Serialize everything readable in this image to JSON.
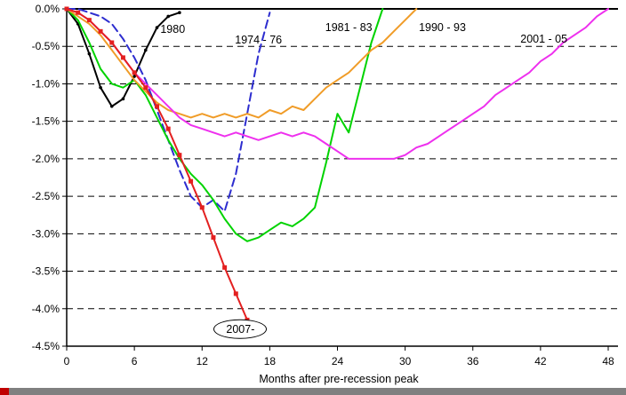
{
  "window": {
    "bottom_strip_color": "#808080",
    "bottom_strip_accent_color": "#c00000",
    "background_color": "#ffffff"
  },
  "chart_data": {
    "type": "line",
    "title": "",
    "xlabel": "Months after pre-recession peak",
    "ylabel": "",
    "xlim": [
      0,
      48
    ],
    "ylim": [
      -4.5,
      0
    ],
    "x_ticks": [
      0,
      6,
      12,
      18,
      24,
      30,
      36,
      42,
      48
    ],
    "y_tick_values": [
      0,
      -0.5,
      -1.0,
      -1.5,
      -2.0,
      -2.5,
      -3.0,
      -3.5,
      -4.0,
      -4.5
    ],
    "y_tick_labels": [
      "0.0%",
      "-0.5%",
      "-1.0%",
      "-1.5%",
      "-2.0%",
      "-2.5%",
      "-3.0%",
      "-3.5%",
      "-4.0%",
      "-4.5%"
    ],
    "grid": "horizontal-dashed",
    "legend": "inline-labels-on-plot",
    "series": [
      {
        "name": "1980",
        "color": "#000000",
        "line_style": "solid",
        "marker": "dot",
        "x_start": 0,
        "x_step": 1,
        "values": [
          0,
          -0.2,
          -0.6,
          -1.05,
          -1.3,
          -1.2,
          -0.9,
          -0.55,
          -0.25,
          -0.1,
          -0.05
        ]
      },
      {
        "name": "1974 - 76",
        "color": "#2d2dcf",
        "line_style": "dashed",
        "marker": "none",
        "x_start": 0,
        "x_step": 1,
        "values": [
          0,
          0,
          -0.05,
          -0.1,
          -0.2,
          -0.4,
          -0.65,
          -0.95,
          -1.35,
          -1.75,
          -2.15,
          -2.5,
          -2.65,
          -2.55,
          -2.7,
          -2.2,
          -1.4,
          -0.6,
          -0.05
        ]
      },
      {
        "name": "1981 - 83",
        "color": "#00d300",
        "line_style": "solid",
        "marker": "none",
        "x_start": 0,
        "x_step": 1,
        "values": [
          0,
          -0.15,
          -0.45,
          -0.8,
          -1.0,
          -1.05,
          -0.95,
          -1.15,
          -1.45,
          -1.75,
          -2.0,
          -2.2,
          -2.35,
          -2.55,
          -2.8,
          -3.0,
          -3.1,
          -3.05,
          -2.95,
          -2.85,
          -2.9,
          -2.8,
          -2.65,
          -2.05,
          -1.4,
          -1.65,
          -1.05,
          -0.45,
          0
        ]
      },
      {
        "name": "1990 - 93",
        "color": "#f09c28",
        "line_style": "solid",
        "marker": "none",
        "x_start": 0,
        "x_step": 1,
        "values": [
          0,
          -0.1,
          -0.2,
          -0.35,
          -0.55,
          -0.75,
          -0.95,
          -1.1,
          -1.25,
          -1.35,
          -1.4,
          -1.45,
          -1.4,
          -1.45,
          -1.4,
          -1.45,
          -1.4,
          -1.45,
          -1.35,
          -1.4,
          -1.3,
          -1.35,
          -1.2,
          -1.05,
          -0.95,
          -0.85,
          -0.7,
          -0.55,
          -0.45,
          -0.3,
          -0.15,
          0
        ]
      },
      {
        "name": "2001 - 05",
        "color": "#ee30ee",
        "line_style": "solid",
        "marker": "none",
        "x_start": 0,
        "x_step": 1,
        "values": [
          0,
          -0.05,
          -0.15,
          -0.3,
          -0.45,
          -0.65,
          -0.85,
          -1.0,
          -1.15,
          -1.3,
          -1.45,
          -1.55,
          -1.6,
          -1.65,
          -1.7,
          -1.65,
          -1.7,
          -1.75,
          -1.7,
          -1.65,
          -1.7,
          -1.65,
          -1.7,
          -1.8,
          -1.9,
          -2.0,
          -2.0,
          -2.0,
          -2.0,
          -2.0,
          -1.95,
          -1.85,
          -1.8,
          -1.7,
          -1.6,
          -1.5,
          -1.4,
          -1.3,
          -1.15,
          -1.05,
          -0.95,
          -0.85,
          -0.7,
          -0.6,
          -0.45,
          -0.35,
          -0.25,
          -0.1,
          0
        ]
      },
      {
        "name": "2007-",
        "color": "#e32020",
        "line_style": "solid",
        "marker": "square",
        "x_start": 0,
        "x_step": 1,
        "values": [
          0,
          -0.05,
          -0.15,
          -0.3,
          -0.45,
          -0.65,
          -0.85,
          -1.05,
          -1.3,
          -1.6,
          -1.95,
          -2.3,
          -2.65,
          -3.05,
          -3.45,
          -3.8,
          -4.15
        ]
      }
    ],
    "annotations": [
      {
        "text": "1980",
        "x": 9.4,
        "y": -0.27,
        "shape": "none"
      },
      {
        "text": "1974 - 76",
        "x": 17.0,
        "y": -0.42,
        "shape": "none"
      },
      {
        "text": "1981 - 83",
        "x": 25.0,
        "y": -0.25,
        "shape": "none"
      },
      {
        "text": "1990 - 93",
        "x": 33.3,
        "y": -0.25,
        "shape": "none"
      },
      {
        "text": "2001 - 05",
        "x": 42.3,
        "y": -0.4,
        "shape": "none"
      },
      {
        "text": "2007-",
        "x": 15.4,
        "y": -4.27,
        "shape": "ellipse"
      }
    ]
  }
}
